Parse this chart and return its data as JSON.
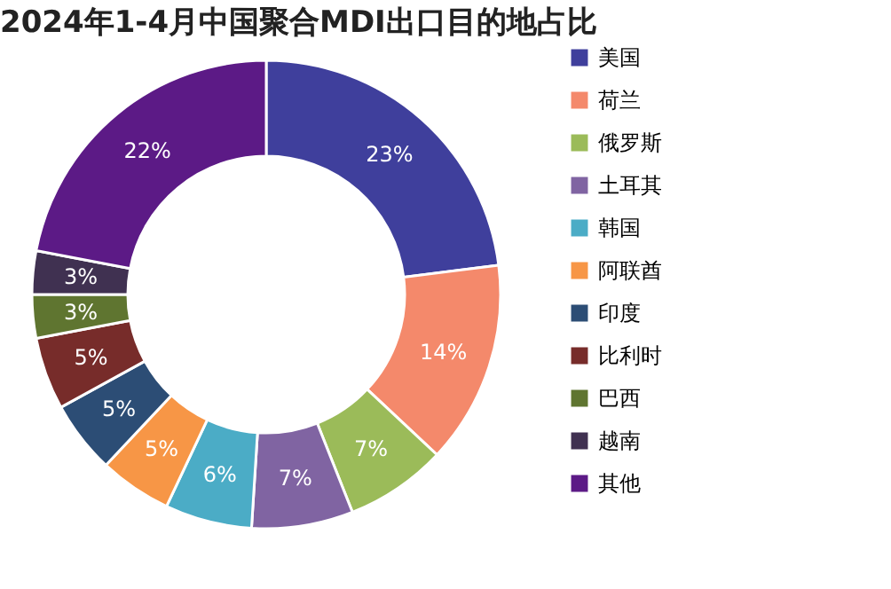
{
  "chart_data": {
    "type": "donut",
    "title": "2024年1-4月中国聚合MDI出口目的地占比",
    "categories": [
      "美国",
      "荷兰",
      "俄罗斯",
      "土耳其",
      "韩国",
      "阿联酋",
      "印度",
      "比利时",
      "巴西",
      "越南",
      "其他"
    ],
    "values": [
      23,
      14,
      7,
      7,
      6,
      5,
      5,
      5,
      3,
      3,
      22
    ],
    "value_labels": [
      "23%",
      "14%",
      "7%",
      "7%",
      "6%",
      "5%",
      "5%",
      "5%",
      "3%",
      "3%",
      "22%"
    ],
    "colors": [
      "#3f3f9c",
      "#f4896b",
      "#9bbb59",
      "#8064a2",
      "#4bacc6",
      "#f79646",
      "#2c4d75",
      "#772c2a",
      "#5f7530",
      "#403151",
      "#5c1a86"
    ],
    "legend": "right"
  }
}
